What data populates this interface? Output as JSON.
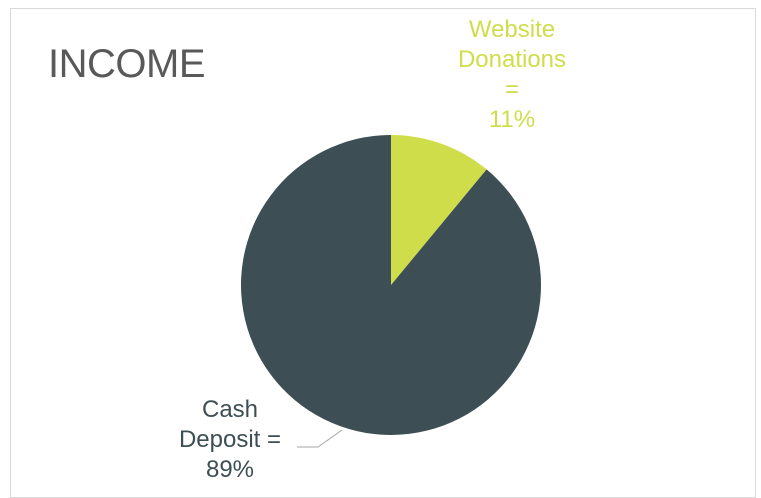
{
  "chart_data": {
    "type": "pie",
    "title": "INCOME",
    "categories": [
      "Website Donations",
      "Cash Deposit"
    ],
    "values": [
      11,
      89
    ],
    "value_labels": [
      "11%",
      "89%"
    ],
    "separator": "=",
    "colors": [
      "#cfdd4b",
      "#3d4f55"
    ]
  }
}
